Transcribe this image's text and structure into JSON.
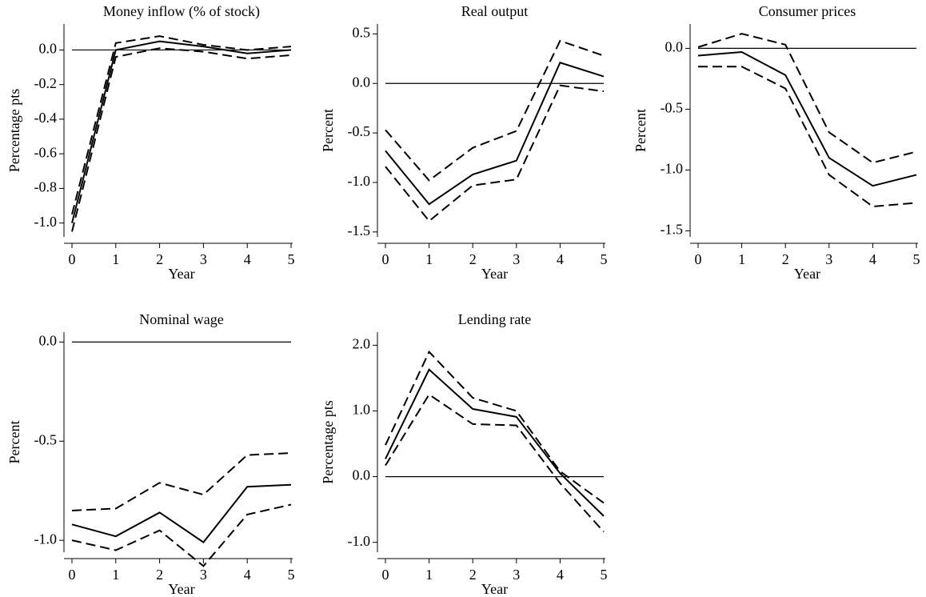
{
  "chart_data": [
    {
      "type": "line",
      "title": "Money inflow (% of stock)",
      "xlabel": "Year",
      "ylabel": "Percentage pts",
      "x": [
        0,
        1,
        2,
        3,
        4,
        5
      ],
      "xlim": [
        0,
        5
      ],
      "xticks": [
        0,
        1,
        2,
        3,
        4,
        5
      ],
      "ylim": [
        -1.08,
        0.15
      ],
      "yticks": [
        {
          "value": -1.0,
          "label": "-1.0"
        },
        {
          "value": -0.8,
          "label": "-0.8"
        },
        {
          "value": -0.6,
          "label": "-0.6"
        },
        {
          "value": -0.4,
          "label": "-0.4"
        },
        {
          "value": -0.2,
          "label": "-0.2"
        },
        {
          "value": 0,
          "label": "0.0"
        }
      ],
      "hline": 0,
      "series": [
        {
          "color": "#000000",
          "style": "solid",
          "values": [
            -1.0,
            0.0,
            0.05,
            0.02,
            -0.02,
            0.0
          ]
        },
        {
          "color": "#000000",
          "style": "dashed",
          "values": [
            -0.95,
            0.04,
            0.08,
            0.03,
            0.0,
            0.02
          ]
        },
        {
          "color": "#000000",
          "style": "dashed",
          "values": [
            -1.05,
            -0.04,
            0.01,
            -0.01,
            -0.05,
            -0.03
          ]
        }
      ]
    },
    {
      "type": "line",
      "title": "Real output",
      "xlabel": "Year",
      "ylabel": "Percent",
      "x": [
        0,
        1,
        2,
        3,
        4,
        5
      ],
      "xlim": [
        0,
        5
      ],
      "xticks": [
        0,
        1,
        2,
        3,
        4,
        5
      ],
      "ylim": [
        -1.55,
        0.6
      ],
      "yticks": [
        {
          "value": -1.5,
          "label": "-1.5"
        },
        {
          "value": -1.0,
          "label": "-1.0"
        },
        {
          "value": -0.5,
          "label": "-0.5"
        },
        {
          "value": 0,
          "label": "0.0"
        },
        0.5
      ],
      "hline": 0,
      "series": [
        {
          "color": "#000000",
          "style": "solid",
          "values": [
            -0.68,
            -1.22,
            -0.92,
            -0.78,
            0.21,
            0.07
          ]
        },
        {
          "color": "#000000",
          "style": "dashed",
          "values": [
            -0.47,
            -0.98,
            -0.65,
            -0.48,
            0.43,
            0.28
          ]
        },
        {
          "color": "#000000",
          "style": "dashed",
          "values": [
            -0.84,
            -1.39,
            -1.03,
            -0.97,
            -0.02,
            -0.08
          ]
        }
      ]
    },
    {
      "type": "line",
      "title": "Consumer prices",
      "xlabel": "Year",
      "ylabel": "Percent",
      "x": [
        0,
        1,
        2,
        3,
        4,
        5
      ],
      "xlim": [
        0,
        5
      ],
      "xticks": [
        0,
        1,
        2,
        3,
        4,
        5
      ],
      "ylim": [
        -1.55,
        0.2
      ],
      "yticks": [
        {
          "value": -1.5,
          "label": "-1.5"
        },
        {
          "value": -1.0,
          "label": "-1.0"
        },
        {
          "value": -0.5,
          "label": "-0.5"
        },
        {
          "value": 0,
          "label": "0.0"
        }
      ],
      "hline": 0,
      "series": [
        {
          "color": "#000000",
          "style": "solid",
          "values": [
            -0.06,
            -0.03,
            -0.22,
            -0.9,
            -1.13,
            -1.04
          ]
        },
        {
          "color": "#000000",
          "style": "dashed",
          "values": [
            0.01,
            0.12,
            0.03,
            -0.69,
            -0.94,
            -0.85
          ]
        },
        {
          "color": "#000000",
          "style": "dashed",
          "values": [
            -0.15,
            -0.15,
            -0.33,
            -1.04,
            -1.3,
            -1.27
          ]
        }
      ]
    },
    {
      "type": "line",
      "title": "Nominal wage",
      "xlabel": "Year",
      "ylabel": "Percent",
      "x": [
        0,
        1,
        2,
        3,
        4,
        5
      ],
      "xlim": [
        0,
        5
      ],
      "xticks": [
        0,
        1,
        2,
        3,
        4,
        5
      ],
      "ylim": [
        -1.06,
        0.05
      ],
      "yticks": [
        {
          "value": -1.0,
          "label": "-1.0"
        },
        {
          "value": -0.5,
          "label": "-0.5"
        },
        {
          "value": 0,
          "label": "0.0"
        }
      ],
      "hline": 0,
      "series": [
        {
          "color": "#000000",
          "style": "solid",
          "values": [
            -0.92,
            -0.98,
            -0.86,
            -1.01,
            -0.73,
            -0.72
          ]
        },
        {
          "color": "#000000",
          "style": "dashed",
          "values": [
            -0.85,
            -0.84,
            -0.71,
            -0.77,
            -0.57,
            -0.56
          ]
        },
        {
          "color": "#000000",
          "style": "dashed",
          "values": [
            -1.0,
            -1.05,
            -0.95,
            -1.13,
            -0.87,
            -0.82
          ]
        }
      ]
    },
    {
      "type": "line",
      "title": "Lending rate",
      "xlabel": "Year",
      "ylabel": "Percentage pts",
      "x": [
        0,
        1,
        2,
        3,
        4,
        5
      ],
      "xlim": [
        0,
        5
      ],
      "xticks": [
        0,
        1,
        2,
        3,
        4,
        5
      ],
      "ylim": [
        -1.15,
        2.2
      ],
      "yticks": [
        {
          "value": -1.0,
          "label": "-1.0"
        },
        {
          "value": 0,
          "label": "0.0"
        },
        {
          "value": 1.0,
          "label": "1.0"
        },
        {
          "value": 2.0,
          "label": "2.0"
        }
      ],
      "hline": 0,
      "series": [
        {
          "color": "#000000",
          "style": "solid",
          "values": [
            0.27,
            1.63,
            1.03,
            0.91,
            0.05,
            -0.6
          ]
        },
        {
          "color": "#000000",
          "style": "dashed",
          "values": [
            0.48,
            1.9,
            1.2,
            1.0,
            0.08,
            -0.4
          ]
        },
        {
          "color": "#000000",
          "style": "dashed",
          "values": [
            0.17,
            1.25,
            0.8,
            0.78,
            -0.1,
            -0.84
          ]
        }
      ]
    }
  ]
}
